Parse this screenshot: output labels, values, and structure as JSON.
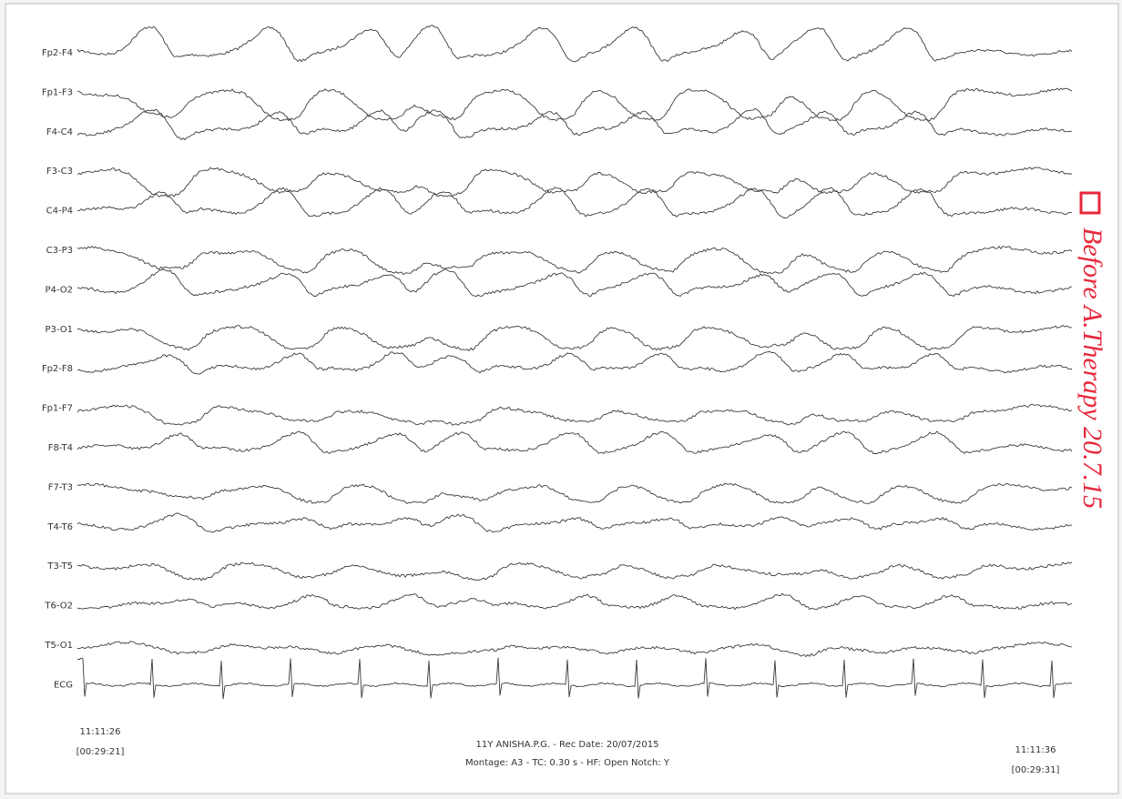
{
  "channels": [
    "Fp2-F4",
    "Fp1-F3",
    "F4-C4",
    "F3-C3",
    "C4-P4",
    "C3-P3",
    "P4-O2",
    "P3-O1",
    "Fp2-F8",
    "Fp1-F7",
    "F8-T4",
    "F7-T3",
    "T4-T6",
    "T3-T5",
    "T6-O2",
    "T5-O1",
    "ECG"
  ],
  "start": {
    "time": "11:11:26",
    "elapsed": "[00:29:21]"
  },
  "end": {
    "time": "11:11:36",
    "elapsed": "[00:29:31]"
  },
  "info": {
    "patient_line": "11Y ANISHA.P.G. - Rec Date: 20/07/2015",
    "montage_line": "Montage: A3 - TC: 0.30 s -  HF: Open Notch: Y"
  },
  "annotation": "Before A.Therapy 20.7.15"
}
